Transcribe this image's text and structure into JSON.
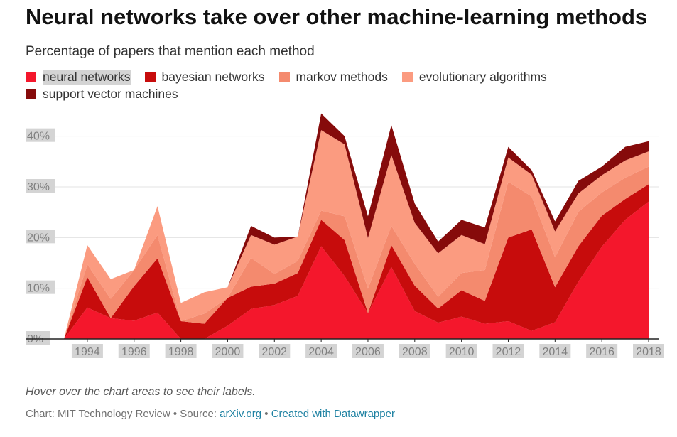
{
  "title": "Neural networks take over other machine-learning methods",
  "subtitle": "Percentage of papers that mention each method",
  "note": "Hover over the chart areas to see their labels.",
  "footer": {
    "chart_credit": "Chart: MIT Technology Review",
    "separator": " • ",
    "source_label": "Source: ",
    "source_link": "arXiv.org",
    "created_with": "Created with Datawrapper"
  },
  "colors": {
    "neural networks": "#f4172c",
    "bayesian networks": "#c70c0c",
    "markov methods": "#f48a6e",
    "evolutionary algorithms": "#fb9b80",
    "support vector machines": "#860b0b"
  },
  "chart_data": {
    "type": "area",
    "stacked": true,
    "title": "Neural networks take over other machine-learning methods",
    "subtitle": "Percentage of papers that mention each method",
    "y_unit": "%",
    "ylim": [
      0,
      45
    ],
    "yticks": [
      0,
      10,
      20,
      30,
      40
    ],
    "ytick_labels": [
      "0%",
      "10%",
      "20%",
      "30%",
      "40%"
    ],
    "xlim": [
      1993,
      2018
    ],
    "xticks": [
      1994,
      1996,
      1998,
      2000,
      2002,
      2004,
      2006,
      2008,
      2010,
      2012,
      2014,
      2016,
      2018
    ],
    "grid": true,
    "legend_position": "top",
    "x": [
      1993,
      1994,
      1995,
      1996,
      1997,
      1998,
      1999,
      2000,
      2001,
      2002,
      2003,
      2004,
      2005,
      2006,
      2007,
      2008,
      2009,
      2010,
      2011,
      2012,
      2013,
      2014,
      2015,
      2016,
      2017,
      2018
    ],
    "series": [
      {
        "name": "neural networks",
        "values": [
          0.0,
          6.2,
          4.1,
          3.6,
          5.2,
          0.0,
          0.0,
          2.6,
          5.9,
          6.7,
          8.5,
          18.3,
          12.4,
          5.1,
          14.2,
          5.5,
          3.2,
          4.4,
          3.0,
          3.5,
          1.6,
          3.3,
          11.3,
          18.2,
          23.5,
          27.1
        ]
      },
      {
        "name": "bayesian networks",
        "values": [
          0.0,
          6.0,
          0.0,
          6.8,
          10.7,
          3.5,
          3.0,
          5.5,
          4.4,
          4.2,
          4.5,
          5.2,
          7.1,
          0.0,
          4.3,
          5.0,
          2.8,
          5.2,
          4.5,
          16.5,
          20.0,
          6.9,
          7.0,
          6.1,
          4.1,
          3.4
        ]
      },
      {
        "name": "markov methods",
        "values": [
          0.0,
          2.5,
          3.8,
          3.2,
          4.6,
          0.0,
          2.0,
          0.0,
          5.7,
          1.9,
          2.4,
          1.8,
          4.7,
          4.8,
          3.8,
          4.3,
          2.3,
          3.4,
          6.1,
          11.0,
          6.5,
          5.9,
          6.8,
          4.6,
          4.2,
          3.5
        ]
      },
      {
        "name": "evolutionary algorithms",
        "values": [
          0.0,
          3.8,
          3.9,
          0.0,
          5.7,
          3.6,
          4.2,
          2.1,
          4.5,
          5.8,
          4.8,
          15.9,
          14.2,
          10.0,
          14.0,
          8.1,
          8.6,
          7.5,
          5.1,
          4.8,
          4.3,
          5.1,
          3.6,
          3.4,
          3.4,
          3.0
        ]
      },
      {
        "name": "support vector machines",
        "values": [
          0.0,
          0.0,
          0.0,
          0.0,
          0.0,
          0.0,
          0.0,
          0.0,
          1.8,
          1.4,
          0.0,
          3.3,
          1.6,
          4.3,
          5.9,
          3.8,
          2.3,
          3.0,
          3.3,
          2.1,
          0.9,
          2.0,
          2.5,
          1.7,
          2.7,
          2.0
        ]
      }
    ]
  }
}
